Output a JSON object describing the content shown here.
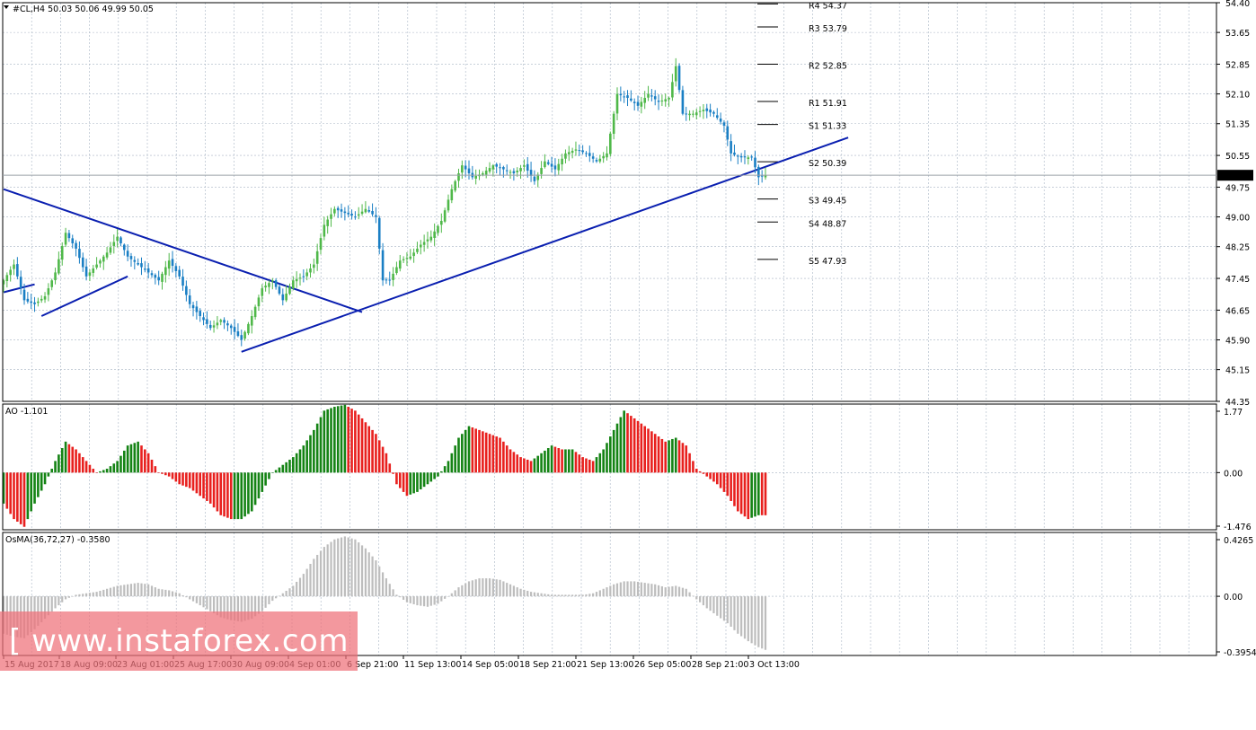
{
  "main": {
    "symbol_header": "#CL,H4  50.03 50.06 49.99 50.05",
    "current_price": "50.05",
    "y_labels": [
      "54.40",
      "53.65",
      "52.85",
      "52.10",
      "51.35",
      "50.55",
      "49.75",
      "49.00",
      "48.25",
      "47.45",
      "46.65",
      "45.90",
      "45.15",
      "44.35"
    ],
    "pivots": [
      {
        "label": "R4 54.37",
        "value": 54.37
      },
      {
        "label": "R3 53.79",
        "value": 53.79
      },
      {
        "label": "R2 52.85",
        "value": 52.85
      },
      {
        "label": "R1 51.91",
        "value": 51.91
      },
      {
        "label": "S1 51.33",
        "value": 51.33
      },
      {
        "label": "S2 50.39",
        "value": 50.39
      },
      {
        "label": "S3 49.45",
        "value": 49.45
      },
      {
        "label": "S4 48.87",
        "value": 48.87
      },
      {
        "label": "S5 47.93",
        "value": 47.93
      }
    ]
  },
  "ao": {
    "header": "AO -1.101",
    "y_labels": [
      "1.77",
      "0.00",
      "-1.476"
    ]
  },
  "osma": {
    "header": "OsMA(36,72,27) -0.3580",
    "y_labels": [
      "0.4265",
      "0.00",
      "-0.3954"
    ]
  },
  "x_labels": [
    "15 Aug 2017",
    "18 Aug 09:00",
    "23 Aug 01:00",
    "25 Aug 17:00",
    "30 Aug 09:00",
    "4 Sep 01:00",
    "6 Sep 21:00",
    "11 Sep 13:00",
    "14 Sep 05:00",
    "18 Sep 21:00",
    "21 Sep 13:00",
    "26 Sep 05:00",
    "28 Sep 21:00",
    "3 Oct 13:00"
  ],
  "watermark": "[ www.instaforex.com ]",
  "colors": {
    "bull": "#4fb849",
    "bear": "#1a7fc4",
    "trend": "#0a1fb0",
    "ao_up": "#148314",
    "ao_down": "#e8201e",
    "osma": "#bdbdbd",
    "grid": "#a8b4c4"
  },
  "chart_data": {
    "type": "candlestick",
    "timeframe": "H4",
    "ylim": [
      44.35,
      54.4
    ],
    "anchors_price": [
      [
        0,
        47.4
      ],
      [
        3,
        47.8
      ],
      [
        6,
        46.9
      ],
      [
        9,
        46.8
      ],
      [
        12,
        47.0
      ],
      [
        15,
        47.6
      ],
      [
        18,
        48.6
      ],
      [
        21,
        48.2
      ],
      [
        24,
        47.5
      ],
      [
        27,
        47.8
      ],
      [
        30,
        48.1
      ],
      [
        33,
        48.5
      ],
      [
        36,
        48.0
      ],
      [
        39,
        47.8
      ],
      [
        42,
        47.6
      ],
      [
        45,
        47.4
      ],
      [
        48,
        47.9
      ],
      [
        51,
        47.5
      ],
      [
        54,
        46.8
      ],
      [
        57,
        46.5
      ],
      [
        60,
        46.2
      ],
      [
        63,
        46.4
      ],
      [
        66,
        46.2
      ],
      [
        69,
        45.9
      ],
      [
        72,
        46.5
      ],
      [
        75,
        47.2
      ],
      [
        78,
        47.4
      ],
      [
        81,
        46.9
      ],
      [
        84,
        47.4
      ],
      [
        87,
        47.5
      ],
      [
        90,
        47.8
      ],
      [
        93,
        48.8
      ],
      [
        96,
        49.2
      ],
      [
        99,
        49.1
      ],
      [
        102,
        49.0
      ],
      [
        105,
        49.2
      ],
      [
        108,
        49.0
      ],
      [
        110,
        47.4
      ],
      [
        112,
        47.4
      ],
      [
        115,
        47.9
      ],
      [
        118,
        48.0
      ],
      [
        121,
        48.3
      ],
      [
        124,
        48.5
      ],
      [
        127,
        48.9
      ],
      [
        130,
        49.7
      ],
      [
        133,
        50.3
      ],
      [
        136,
        50.0
      ],
      [
        139,
        50.1
      ],
      [
        142,
        50.3
      ],
      [
        145,
        50.2
      ],
      [
        148,
        50.1
      ],
      [
        151,
        50.3
      ],
      [
        154,
        49.9
      ],
      [
        157,
        50.4
      ],
      [
        160,
        50.2
      ],
      [
        163,
        50.6
      ],
      [
        166,
        50.7
      ],
      [
        169,
        50.6
      ],
      [
        172,
        50.4
      ],
      [
        175,
        50.6
      ],
      [
        178,
        52.1
      ],
      [
        181,
        52.0
      ],
      [
        184,
        51.8
      ],
      [
        187,
        52.1
      ],
      [
        190,
        51.9
      ],
      [
        193,
        52.0
      ],
      [
        195,
        52.8
      ],
      [
        197,
        51.6
      ],
      [
        200,
        51.6
      ],
      [
        203,
        51.7
      ],
      [
        206,
        51.6
      ],
      [
        209,
        51.3
      ],
      [
        211,
        50.6
      ],
      [
        214,
        50.5
      ],
      [
        217,
        50.5
      ],
      [
        219,
        50.0
      ],
      [
        221,
        50.05
      ]
    ],
    "ao": {
      "ylim": [
        -1.476,
        1.77
      ],
      "anchors": [
        [
          0,
          -0.8
        ],
        [
          3,
          -1.2
        ],
        [
          6,
          -1.4
        ],
        [
          9,
          -0.8
        ],
        [
          12,
          -0.3
        ],
        [
          15,
          0.3
        ],
        [
          18,
          0.8
        ],
        [
          21,
          0.6
        ],
        [
          24,
          0.3
        ],
        [
          27,
          0.0
        ],
        [
          30,
          0.1
        ],
        [
          33,
          0.3
        ],
        [
          36,
          0.7
        ],
        [
          39,
          0.8
        ],
        [
          42,
          0.5
        ],
        [
          45,
          0.0
        ],
        [
          48,
          -0.1
        ],
        [
          51,
          -0.3
        ],
        [
          54,
          -0.4
        ],
        [
          57,
          -0.6
        ],
        [
          60,
          -0.8
        ],
        [
          63,
          -1.1
        ],
        [
          66,
          -1.2
        ],
        [
          69,
          -1.2
        ],
        [
          72,
          -1.0
        ],
        [
          75,
          -0.5
        ],
        [
          78,
          0.0
        ],
        [
          81,
          0.2
        ],
        [
          84,
          0.4
        ],
        [
          87,
          0.7
        ],
        [
          90,
          1.1
        ],
        [
          93,
          1.6
        ],
        [
          96,
          1.7
        ],
        [
          99,
          1.75
        ],
        [
          102,
          1.6
        ],
        [
          105,
          1.3
        ],
        [
          108,
          1.0
        ],
        [
          111,
          0.5
        ],
        [
          114,
          -0.3
        ],
        [
          117,
          -0.6
        ],
        [
          120,
          -0.5
        ],
        [
          123,
          -0.3
        ],
        [
          126,
          -0.1
        ],
        [
          129,
          0.3
        ],
        [
          132,
          0.9
        ],
        [
          135,
          1.2
        ],
        [
          138,
          1.1
        ],
        [
          141,
          1.0
        ],
        [
          144,
          0.9
        ],
        [
          147,
          0.6
        ],
        [
          150,
          0.4
        ],
        [
          153,
          0.3
        ],
        [
          156,
          0.5
        ],
        [
          159,
          0.7
        ],
        [
          162,
          0.6
        ],
        [
          165,
          0.6
        ],
        [
          168,
          0.4
        ],
        [
          171,
          0.3
        ],
        [
          174,
          0.6
        ],
        [
          177,
          1.1
        ],
        [
          180,
          1.6
        ],
        [
          183,
          1.4
        ],
        [
          186,
          1.2
        ],
        [
          189,
          1.0
        ],
        [
          192,
          0.8
        ],
        [
          195,
          0.9
        ],
        [
          198,
          0.7
        ],
        [
          201,
          0.1
        ],
        [
          204,
          -0.1
        ],
        [
          207,
          -0.3
        ],
        [
          210,
          -0.6
        ],
        [
          213,
          -1.0
        ],
        [
          216,
          -1.2
        ],
        [
          219,
          -1.1
        ],
        [
          221,
          -1.101
        ]
      ]
    },
    "osma": {
      "ylim": [
        -0.3954,
        0.4265
      ],
      "anchors": [
        [
          0,
          -0.25
        ],
        [
          3,
          -0.27
        ],
        [
          6,
          -0.28
        ],
        [
          9,
          -0.22
        ],
        [
          12,
          -0.15
        ],
        [
          15,
          -0.08
        ],
        [
          18,
          -0.02
        ],
        [
          21,
          0.01
        ],
        [
          24,
          0.02
        ],
        [
          27,
          0.03
        ],
        [
          30,
          0.05
        ],
        [
          33,
          0.07
        ],
        [
          36,
          0.08
        ],
        [
          39,
          0.09
        ],
        [
          42,
          0.08
        ],
        [
          45,
          0.05
        ],
        [
          48,
          0.04
        ],
        [
          51,
          0.02
        ],
        [
          54,
          -0.02
        ],
        [
          57,
          -0.06
        ],
        [
          60,
          -0.1
        ],
        [
          63,
          -0.14
        ],
        [
          66,
          -0.16
        ],
        [
          69,
          -0.17
        ],
        [
          72,
          -0.15
        ],
        [
          75,
          -0.1
        ],
        [
          78,
          -0.03
        ],
        [
          81,
          0.02
        ],
        [
          84,
          0.07
        ],
        [
          87,
          0.15
        ],
        [
          90,
          0.25
        ],
        [
          93,
          0.33
        ],
        [
          96,
          0.38
        ],
        [
          99,
          0.4
        ],
        [
          102,
          0.38
        ],
        [
          105,
          0.32
        ],
        [
          108,
          0.24
        ],
        [
          111,
          0.12
        ],
        [
          114,
          0.01
        ],
        [
          117,
          -0.04
        ],
        [
          120,
          -0.06
        ],
        [
          123,
          -0.07
        ],
        [
          126,
          -0.05
        ],
        [
          129,
          0.0
        ],
        [
          132,
          0.06
        ],
        [
          135,
          0.1
        ],
        [
          138,
          0.12
        ],
        [
          141,
          0.12
        ],
        [
          144,
          0.11
        ],
        [
          147,
          0.08
        ],
        [
          150,
          0.05
        ],
        [
          153,
          0.03
        ],
        [
          156,
          0.02
        ],
        [
          159,
          0.01
        ],
        [
          162,
          0.01
        ],
        [
          165,
          0.01
        ],
        [
          168,
          0.01
        ],
        [
          171,
          0.02
        ],
        [
          174,
          0.05
        ],
        [
          177,
          0.08
        ],
        [
          180,
          0.1
        ],
        [
          183,
          0.1
        ],
        [
          186,
          0.09
        ],
        [
          189,
          0.08
        ],
        [
          192,
          0.06
        ],
        [
          195,
          0.07
        ],
        [
          198,
          0.05
        ],
        [
          201,
          -0.02
        ],
        [
          204,
          -0.08
        ],
        [
          207,
          -0.13
        ],
        [
          210,
          -0.18
        ],
        [
          213,
          -0.25
        ],
        [
          216,
          -0.3
        ],
        [
          219,
          -0.34
        ],
        [
          221,
          -0.358
        ]
      ]
    },
    "trendlines": [
      {
        "from": [
          0,
          49.7
        ],
        "to": [
          104,
          46.6
        ]
      },
      {
        "from": [
          11,
          46.5
        ],
        "to": [
          36,
          47.5
        ]
      },
      {
        "from": [
          69,
          45.6
        ],
        "to": [
          245,
          51.0
        ]
      },
      {
        "from": [
          0,
          47.1
        ],
        "to": [
          9,
          47.3
        ]
      }
    ]
  }
}
